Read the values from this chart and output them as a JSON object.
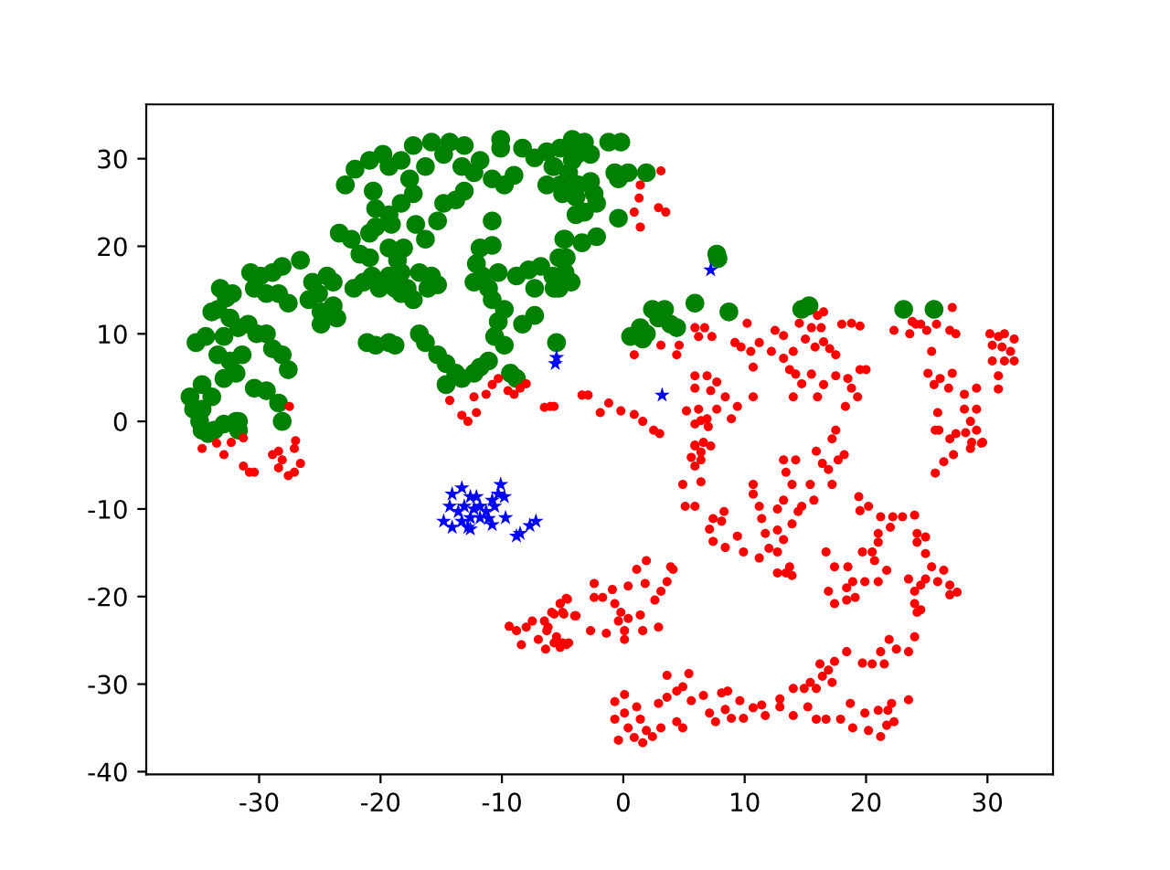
{
  "chart_data": {
    "type": "scatter",
    "xlim": [
      -39.3,
      35.4
    ],
    "ylim": [
      -40.3,
      36.2
    ],
    "xticks": [
      -30,
      -20,
      -10,
      0,
      10,
      20,
      30
    ],
    "yticks": [
      -40,
      -30,
      -20,
      -10,
      0,
      10,
      20,
      30
    ],
    "series": [
      {
        "color": "#008000",
        "marker": "circle",
        "x": [
          -35.7,
          -35.4,
          -34.9,
          -34.7,
          -34.2,
          -32.9,
          -31.7,
          -35.2,
          -34.4,
          -33.2,
          -33.4,
          -33.9,
          -32.7,
          -32.2,
          -30.7,
          -29.9,
          -28.9,
          -28.1,
          -26.6,
          -30.4,
          -29.4,
          -28.4,
          -27.6,
          -32.4,
          -31.7,
          -30.9,
          -30.2,
          -29.4,
          -32.9,
          -33.4,
          -32.4,
          -31.4,
          -32.9,
          -31.9,
          -30.4,
          -29.4,
          -28.4,
          -28.1,
          -28.9,
          -28.1,
          -27.6,
          -34.7,
          -33.9,
          -34.7,
          -31.9,
          -31.7,
          -33.7,
          -25.6,
          -25.1,
          -25.9,
          -24.9,
          -24.9,
          -23.9,
          -23.6,
          -23.9,
          -24.4,
          -23.4,
          -22.4,
          -20.9,
          -21.7,
          -20.9,
          -22.2,
          -21.4,
          -20.7,
          -20.1,
          -19.3,
          -18.3,
          -17.8,
          -17.3,
          -16.8,
          -15.8,
          -15.3,
          -16.1,
          -18.8,
          -18.3,
          -19.3,
          -18.1,
          -18.6,
          -19.1,
          -20.4,
          -17.1,
          -16.3,
          -21.1,
          -20.4,
          -19.3,
          -18.8,
          -16.8,
          -16.3,
          -15.3,
          -14.6,
          -13.8,
          -14.6,
          -13.3,
          -12.3,
          -11.8,
          -11.1,
          -9.3,
          -8.8,
          -22.9,
          -22.1,
          -20.9,
          -19.8,
          -19.3,
          -20.6,
          -20.4,
          -19.3,
          -18.3,
          -17.3,
          -17.6,
          -18.3,
          -17.3,
          -15.8,
          -14.3,
          -13.1,
          -14.8,
          -16.3,
          -13.3,
          -12.3,
          -11.8,
          -10.1,
          -10.1,
          -14.8,
          -13.8,
          -15.3,
          -10.8,
          -9.8,
          -9,
          -8.3,
          -7.3,
          -6.3,
          -5.8,
          -6.3,
          -5,
          -3.8,
          -4.5,
          -10.8,
          -11.8,
          -10.8,
          -12.1,
          -11.6,
          -12.3,
          -11.1,
          -10.3,
          -10.8,
          -9.8,
          -10.3,
          -10.6,
          -9.8,
          -8.3,
          -7.3,
          -8.8,
          -7.8,
          -6.8,
          -5.8,
          -4.8,
          -4.3,
          -5.3,
          -4.8,
          -5.3,
          -7.3,
          -13.1,
          -5.5,
          -4.2,
          -3.2,
          -5.2,
          -5.7,
          -4.2,
          -2.7,
          -1.2,
          -0.2,
          -0.7,
          0.4,
          1.9,
          -0.4,
          -2.7,
          -3.7,
          -5.2,
          -3.9,
          -2.4,
          -2.2,
          -3.2,
          -3.9,
          -0.4,
          -2.2,
          -3.4,
          -4.9,
          -4.7,
          -5.7,
          7.7,
          7.8,
          5.9,
          8.7,
          2.4,
          3.4,
          2.9,
          3.9,
          4.4,
          1.4,
          0.6,
          1.6,
          1.9,
          14.7,
          15.3,
          23.1,
          25.6
        ],
        "values": [
          2.8,
          1.4,
          0,
          -1,
          -1.4,
          -0.3,
          0,
          9,
          9.7,
          15.2,
          12.8,
          12.5,
          14.1,
          14.6,
          17,
          16.6,
          17,
          17.7,
          18.4,
          15.2,
          14.6,
          14.6,
          13.5,
          11.8,
          10.7,
          11.1,
          10,
          10,
          9.7,
          7.6,
          6.9,
          7.6,
          4.9,
          5.5,
          3.8,
          3.5,
          2.1,
          0,
          8.3,
          7.6,
          5.9,
          4.2,
          2.8,
          1.4,
          0,
          -1,
          -1,
          15.9,
          14.6,
          13.9,
          12.5,
          11.1,
          13.2,
          11.8,
          15.9,
          16.6,
          21.5,
          20.8,
          21.5,
          19.1,
          18.7,
          15.2,
          15.9,
          16.6,
          15.2,
          16.6,
          17,
          15.2,
          13.9,
          17,
          16.6,
          15.6,
          15.2,
          15.2,
          14.6,
          19.8,
          19.8,
          18.4,
          22.5,
          22.2,
          22.5,
          20.8,
          9,
          8.7,
          9,
          8.7,
          10,
          9,
          7.6,
          6.6,
          5.5,
          4.2,
          4.9,
          5.5,
          6.2,
          6.9,
          5.5,
          4.9,
          27,
          28.8,
          29.8,
          30.5,
          29.1,
          26.3,
          24.3,
          23.6,
          24.9,
          26,
          27.7,
          29.8,
          31.5,
          31.9,
          31.9,
          31.5,
          30.5,
          29.1,
          29.1,
          28.4,
          29.8,
          32.2,
          31.2,
          24.9,
          25.3,
          22.9,
          27.7,
          27,
          28.1,
          31.2,
          30.1,
          30.8,
          29.1,
          27,
          26,
          30.5,
          28.4,
          22.9,
          19.8,
          20.1,
          18,
          16.6,
          15.9,
          15.2,
          17,
          13.9,
          12.8,
          11.4,
          9.7,
          8.7,
          11.1,
          12.1,
          16.6,
          17.3,
          17.7,
          16.6,
          17,
          15.9,
          15.2,
          20.8,
          18.7,
          15.2,
          26.3,
          9,
          32.2,
          31.9,
          31.2,
          29.1,
          29.8,
          30.5,
          31.9,
          31.9,
          28.4,
          28.4,
          28.4,
          27.7,
          27.4,
          27,
          27,
          25.6,
          26,
          24.9,
          23.9,
          23.6,
          23.2,
          21.1,
          20.4,
          20.8,
          18.7,
          15.2,
          19.1,
          18.6,
          13.5,
          12.5,
          12.8,
          12.8,
          11.8,
          11.1,
          10.7,
          10.7,
          9.7,
          9.4,
          10,
          12.8,
          13.2,
          12.8,
          12.8
        ]
      },
      {
        "color": "#ff0000",
        "marker": "circle",
        "x": [
          3.1,
          1.4,
          1.3,
          2.9,
          3.5,
          0.9,
          1.4,
          0.9,
          3.1,
          4.4,
          5.9,
          6.7,
          6.2,
          7.3,
          4.6,
          10.2,
          9.2,
          9.7,
          10.5,
          11.2,
          12.2,
          10.7,
          12.5,
          13.2,
          13.2,
          14,
          14.5,
          15.5,
          16,
          16.5,
          16.3,
          15,
          15.8,
          16.5,
          17,
          18,
          18.8,
          19.5,
          13.7,
          14.2,
          15.5,
          14.7,
          14,
          16,
          16.5,
          17.5,
          18.5,
          19.5,
          20,
          18.8,
          19.3,
          18.3,
          17.5,
          22.3,
          23.6,
          23.8,
          24.5,
          25,
          25.8,
          27.1,
          26.9,
          27.4,
          25.4,
          25.1,
          26.1,
          27.1,
          25.6,
          26.8,
          28.1,
          29.1,
          28.1,
          29.1,
          28.6,
          29.1,
          27.4,
          29.6,
          28.6,
          30.2,
          30.9,
          31.4,
          32.2,
          30.4,
          31.2,
          31.9,
          30.4,
          31.4,
          32.2,
          30.9,
          30.9,
          26,
          24.1,
          25.9,
          5.9,
          6.9,
          7.7,
          7.2,
          5.9,
          8.4,
          9.4,
          8.9,
          6.2,
          5.2,
          7.7,
          10.7,
          6.9,
          5.9,
          2.5,
          3,
          -3.4,
          -2.9,
          -1.2,
          -1.9,
          -0.2,
          0.9,
          1.6,
          -5.7,
          7.2,
          5.9,
          6.4,
          -14.3,
          -13.3,
          -12.8,
          -12.1,
          -12.3,
          -11.3,
          -10.8,
          -10.3,
          -9.5,
          -8.5,
          -8,
          -9,
          -6.5,
          -6,
          -27.5,
          -34.7,
          -33.5,
          -32.9,
          -32.3,
          -31.3,
          -31.3,
          -30.8,
          -30.4,
          -28.9,
          -28.4,
          -28.1,
          -28.4,
          -27.6,
          -27.1,
          -26.6,
          -27.1,
          -27,
          -9.4,
          -8.8,
          -8.4,
          -8,
          -7.5,
          -7,
          -6.5,
          -6.3,
          -6.4,
          -5.7,
          -5.2,
          -4.6,
          -4.9,
          -5.5,
          -5,
          -4.5,
          -4,
          -5.2,
          5.9,
          6.6,
          5.6,
          6.4,
          5.9,
          6.4,
          4.9,
          5.1,
          5.9,
          7,
          6.4,
          7.1,
          7.4,
          8.3,
          8.1,
          8.4,
          9.4,
          9.9,
          10.7,
          10.7,
          11.2,
          11.4,
          11.7,
          11.2,
          12,
          12.7,
          13.2,
          14.2,
          13.4,
          13.9,
          13.2,
          12.7,
          13.2,
          12.7,
          12.7,
          13.4,
          13.9,
          13.7,
          14.4,
          14.7,
          13.9,
          15.4,
          15.7,
          15.9,
          16.4,
          17.2,
          17.5,
          16.9,
          17.7,
          18.2,
          17.2,
          7.4,
          19.4,
          19.5,
          20.2,
          21.2,
          22.2,
          23,
          24,
          22,
          21,
          21,
          20.5,
          19.7,
          20.7,
          21.7,
          21,
          19.9,
          18.9,
          18.4,
          17.4,
          18.4,
          19.1,
          17.4,
          16.9,
          16.7,
          18.5,
          24.2,
          24.2,
          24.9,
          24.9,
          25.4,
          26.4,
          23.5,
          24,
          24.5,
          24.9,
          25.9,
          26.9,
          27.5,
          24,
          24.5,
          26.9,
          24.2,
          24,
          23.5,
          22.5,
          21.9,
          21.2,
          21.5,
          20.5,
          19.7,
          18.4,
          17.4,
          16.9,
          16.4,
          16.2,
          15.4,
          14.9,
          15.9,
          17.2,
          25.7,
          26.9,
          28.7,
          29.5,
          27.2,
          26.4,
          25.7,
          28.2,
          -0.7,
          0.1,
          -0.7,
          0.1,
          -0.4,
          0.4,
          1.1,
          1.4,
          0.9,
          1.6,
          1.9,
          2.4,
          3.1,
          2.9,
          3.6,
          3.6,
          4.4,
          4.9,
          5.4,
          4.4,
          4.9,
          5.6,
          6.6,
          7.1,
          7.6,
          8.1,
          8.6,
          8.4,
          8.9,
          9.6,
          9.9,
          10.7,
          11.4,
          11.7,
          12.9,
          12.9,
          14,
          14,
          15.2,
          15.9,
          16.7,
          17.9,
          18.7,
          18.9,
          19.9,
          20.2,
          21,
          21.2,
          21.8,
          22.3,
          22.1,
          23.5,
          21.7,
          -5.2,
          -4.7,
          -5.9,
          -5,
          -3.9,
          -2.4,
          -2.4,
          -1.7,
          -0.9,
          -0.7,
          -0.2,
          -0.4,
          0.4,
          0.1,
          0.1,
          -2.7,
          -1.4,
          1.4,
          1.6,
          2.9,
          2.6,
          3.1,
          3.6,
          4.1,
          3.9,
          1.9,
          1.1,
          0.4,
          1.8,
          -5.7,
          -4.7,
          -6.2
        ],
        "values": [
          28.6,
          27,
          25.5,
          24.4,
          23.9,
          23.9,
          22.2,
          7.6,
          8.7,
          7.6,
          10.7,
          10.7,
          9.7,
          9.7,
          8.7,
          11.2,
          9,
          8.5,
          8,
          9,
          8,
          6.2,
          10.4,
          9.8,
          7.2,
          8,
          11.2,
          10.7,
          12.1,
          12.5,
          10.7,
          9.4,
          8.5,
          9.1,
          8.3,
          11.1,
          11.2,
          10.9,
          5.9,
          5.4,
          5.4,
          4.3,
          2.8,
          2.8,
          4.2,
          5.2,
          4.9,
          5.9,
          5.9,
          3.8,
          2.8,
          1.7,
          7.6,
          10.4,
          10,
          11.4,
          11.1,
          10.4,
          11.1,
          13,
          10.4,
          10,
          8,
          5.5,
          4.9,
          5.5,
          4.2,
          3.8,
          3.1,
          3.8,
          1.4,
          1.4,
          0,
          -1,
          -1.4,
          -2.4,
          -3.1,
          10,
          9.7,
          10,
          9.4,
          8.7,
          8.5,
          8,
          6.9,
          6.9,
          6.9,
          5.2,
          3.7,
          -1,
          11.1,
          1,
          5.2,
          5.2,
          4.5,
          3.5,
          3.8,
          2.8,
          1.7,
          0.3,
          1.4,
          1.2,
          1.4,
          2.8,
          0.3,
          -0.3,
          -1,
          -1.4,
          3,
          3,
          2.1,
          1,
          1.2,
          0.8,
          0,
          1.7,
          -2.8,
          -2.8,
          -3.5,
          2.4,
          0.7,
          0,
          1,
          2.8,
          3.1,
          4.2,
          4.9,
          3.5,
          3.8,
          4.3,
          3.1,
          1.6,
          1.7,
          1.7,
          -3.1,
          -2.5,
          -3.8,
          -2.4,
          -1.9,
          -5.1,
          -5.8,
          -5.8,
          -3.8,
          -3.4,
          -4.4,
          -5.3,
          -6.2,
          -5.8,
          -4.8,
          -3.1,
          -2.2,
          -23.4,
          -23.9,
          -25.5,
          -23.5,
          -22.8,
          -24.9,
          -22.8,
          -23.9,
          -26,
          -22,
          -20.8,
          -20.3,
          -22,
          -24.6,
          -25.3,
          -25.3,
          -22.2,
          -25.8,
          -2.7,
          -2.4,
          -4.1,
          -4.4,
          -5.1,
          -6.9,
          -7.2,
          -9.7,
          -9.7,
          -0.6,
          0.1,
          -12.3,
          -13.7,
          -10.3,
          -11.4,
          -14.4,
          -13.1,
          -14.9,
          -7.2,
          -8.3,
          -9.7,
          -11.1,
          -12.8,
          -15.6,
          -14.5,
          -10,
          -4.4,
          -4.4,
          -5.8,
          -7.2,
          -9,
          -12.4,
          -13.5,
          -14.9,
          -17.3,
          -17.3,
          -17.6,
          -16.6,
          -10.3,
          -9.7,
          -11.7,
          -7.2,
          -9,
          -3.4,
          -4.8,
          -2,
          -1,
          -5.5,
          -4.4,
          -3.8,
          -7.2,
          -11.1,
          -8.6,
          -10.2,
          -9.7,
          -10.9,
          -10.9,
          -10.9,
          -10.7,
          -12.1,
          -12.8,
          -13.8,
          -14.9,
          -14.9,
          -15.9,
          -17,
          -18.3,
          -18.3,
          -18.3,
          -19,
          -20.8,
          -20.4,
          -20.1,
          -16.6,
          -19.4,
          -14.9,
          -16.6,
          -12.8,
          -13.8,
          -13.2,
          -15.1,
          -16.6,
          -17,
          -18,
          -19.4,
          -18.7,
          -18,
          -18.3,
          -18.7,
          -19.5,
          -20.8,
          -21.5,
          -19.8,
          -21.8,
          -24.6,
          -26.3,
          -26,
          -24.9,
          -26.3,
          -27.7,
          -27.7,
          -27.6,
          -26.3,
          -27.4,
          -28.4,
          -29.1,
          -27.7,
          -29.8,
          -30.5,
          -30.5,
          -29.8,
          -1,
          -2,
          -2.4,
          -2.5,
          -3.8,
          -4.6,
          -5.9,
          -1.3,
          -32,
          -31.2,
          -34,
          -33.3,
          -36.4,
          -35,
          -32.6,
          -34,
          -36.1,
          -36.7,
          -35.3,
          -36,
          -35,
          -32.2,
          -31.5,
          -29,
          -30.8,
          -30.3,
          -28.8,
          -34.3,
          -35,
          -31.9,
          -31.3,
          -33.3,
          -34.3,
          -31,
          -30.8,
          -32.9,
          -33.9,
          -31.9,
          -33.9,
          -32.7,
          -32.4,
          -33.6,
          -31.7,
          -32.6,
          -30.5,
          -33.6,
          -32.6,
          -34,
          -34,
          -34,
          -32.2,
          -35,
          -33.3,
          -35.3,
          -33,
          -36,
          -33,
          -34.3,
          -32.2,
          -31.8,
          -34.7,
          -20.8,
          -20.2,
          -21.8,
          -21.8,
          -22.2,
          -18.5,
          -20.1,
          -20.1,
          -19.2,
          -20.8,
          -21.8,
          -22.8,
          -22.5,
          -23.9,
          -24.9,
          -23.9,
          -24.2,
          -22.1,
          -23.9,
          -23.5,
          -20.4,
          -19.4,
          -18.3,
          -16.9,
          -16.6,
          -15.9,
          -16.9,
          -18.8,
          -18.5,
          -25.3,
          -25.5,
          -23.5
        ]
      },
      {
        "color": "#0000ff",
        "marker": "star",
        "x": [
          -5.5,
          -5.6,
          7.2,
          3.2,
          -14.8,
          -14.1,
          -14.1,
          -13.3,
          -12.6,
          -13.1,
          -13.6,
          -12.6,
          -12.6,
          -11.8,
          -12.1,
          -11.3,
          -10.8,
          -10.3,
          -10.1,
          -9.8,
          -10.6,
          -11.1,
          -10.8,
          -9.7,
          -8.5,
          -8.8,
          -7.2,
          -7.7,
          -13.3,
          -14.3,
          -12.3,
          -12.8,
          -11.8
        ],
        "values": [
          7.3,
          6.6,
          17.3,
          3,
          -11.4,
          -12.1,
          -8.3,
          -7.6,
          -8.6,
          -9.7,
          -10.3,
          -11,
          -12.3,
          -9.7,
          -8.6,
          -10.3,
          -9,
          -8.3,
          -7.2,
          -8.6,
          -9.7,
          -11.1,
          -11.8,
          -11,
          -12.8,
          -13.1,
          -11.4,
          -11.9,
          -11.4,
          -9.7,
          -10,
          -12.1,
          -11
        ]
      }
    ]
  }
}
